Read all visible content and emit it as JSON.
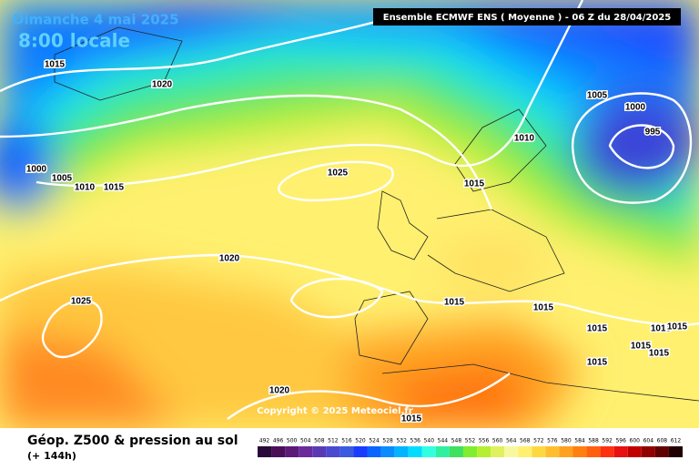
{
  "header": {
    "date": "Dimanche 4 mai 2025",
    "time": "8:00 locale",
    "model": "Ensemble ECMWF ENS  ( Moyenne )  -  06 Z du 28/04/2025"
  },
  "copyright": "Copyright © 2025 Meteociel.fr",
  "footer": {
    "title": "Géop. Z500 & pression au sol",
    "lead": "(+ 144h)"
  },
  "isobars": [
    1015,
    1020,
    1000,
    1005,
    1010,
    1015,
    1025,
    1020,
    1025,
    1010,
    1015,
    1005,
    1000,
    995,
    1015,
    1015,
    1015,
    1015,
    1015,
    1015,
    1015,
    1015,
    1020,
    1015
  ],
  "legend": {
    "values": [
      492,
      496,
      500,
      504,
      508,
      512,
      516,
      520,
      524,
      528,
      532,
      536,
      540,
      544,
      548,
      552,
      556,
      560,
      564,
      568,
      572,
      576,
      580,
      584,
      588,
      592,
      596,
      600,
      604,
      608,
      612
    ],
    "colors": [
      "#2a0a3a",
      "#4b0f5a",
      "#5e1a78",
      "#6a2a9a",
      "#5a3ab4",
      "#4a4ad0",
      "#3a5ae0",
      "#1a3cff",
      "#0a64ff",
      "#0a8cff",
      "#00b4ff",
      "#00dcff",
      "#30ffe0",
      "#30f0a0",
      "#40e060",
      "#80ee30",
      "#b4f030",
      "#e0f060",
      "#f8f8a0",
      "#fff070",
      "#ffd840",
      "#ffbe30",
      "#ffa020",
      "#ff8010",
      "#ff6010",
      "#ff3010",
      "#e81010",
      "#c00000",
      "#900000",
      "#600000",
      "#200000"
    ]
  }
}
